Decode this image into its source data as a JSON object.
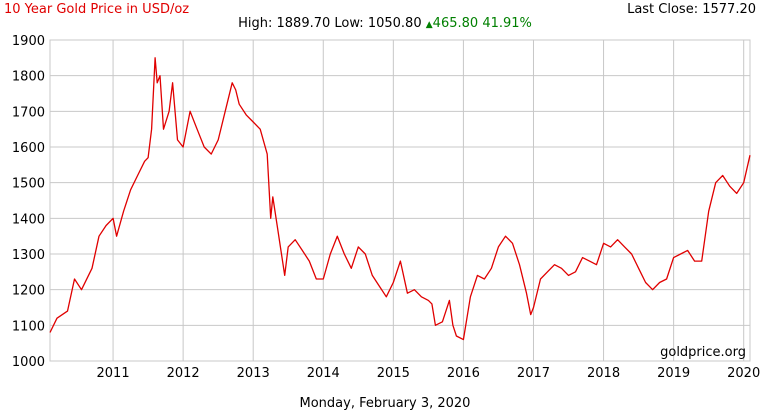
{
  "header": {
    "title": "10 Year Gold Price in USD/oz",
    "high_label": "High:",
    "high_value": "1889.70",
    "low_label": "Low:",
    "low_value": "1050.80",
    "change_value": "465.80",
    "change_percent": "41.91%",
    "last_close_label": "Last Close:",
    "last_close_value": "1577.20"
  },
  "footer": {
    "date": "Monday, February 3, 2020"
  },
  "watermark": "goldprice.org",
  "colors": {
    "line": "#e00000",
    "grid": "#c8c8c8",
    "title": "#e00000",
    "change": "#008000"
  },
  "chart_data": {
    "type": "line",
    "title": "10 Year Gold Price in USD/oz",
    "xlabel": "",
    "ylabel": "",
    "xlim": [
      2010.1,
      2020.09
    ],
    "ylim": [
      1000,
      1900
    ],
    "yticks": [
      1000,
      1100,
      1200,
      1300,
      1400,
      1500,
      1600,
      1700,
      1800,
      1900
    ],
    "xticks": [
      2011,
      2012,
      2013,
      2014,
      2015,
      2016,
      2017,
      2018,
      2019,
      2020
    ],
    "grid": true,
    "legend": "none",
    "series": [
      {
        "x": [
          2010.1,
          2010.2,
          2010.35,
          2010.45,
          2010.55,
          2010.7,
          2010.8,
          2010.9,
          2011.0,
          2011.05,
          2011.15,
          2011.25,
          2011.35,
          2011.45,
          2011.5,
          2011.55,
          2011.6,
          2011.63,
          2011.67,
          2011.72,
          2011.8,
          2011.85,
          2011.92,
          2012.0,
          2012.1,
          2012.2,
          2012.3,
          2012.4,
          2012.5,
          2012.6,
          2012.7,
          2012.75,
          2012.8,
          2012.9,
          2013.0,
          2013.1,
          2013.2,
          2013.25,
          2013.28,
          2013.35,
          2013.45,
          2013.5,
          2013.6,
          2013.7,
          2013.8,
          2013.9,
          2014.0,
          2014.1,
          2014.2,
          2014.3,
          2014.4,
          2014.5,
          2014.6,
          2014.7,
          2014.8,
          2014.9,
          2015.0,
          2015.1,
          2015.2,
          2015.3,
          2015.4,
          2015.5,
          2015.55,
          2015.6,
          2015.7,
          2015.8,
          2015.85,
          2015.9,
          2016.0,
          2016.1,
          2016.2,
          2016.3,
          2016.4,
          2016.5,
          2016.6,
          2016.7,
          2016.8,
          2016.9,
          2016.96,
          2017.0,
          2017.1,
          2017.2,
          2017.3,
          2017.4,
          2017.5,
          2017.6,
          2017.7,
          2017.8,
          2017.9,
          2018.0,
          2018.1,
          2018.2,
          2018.3,
          2018.4,
          2018.5,
          2018.6,
          2018.65,
          2018.7,
          2018.8,
          2018.9,
          2019.0,
          2019.1,
          2019.2,
          2019.3,
          2019.4,
          2019.45,
          2019.5,
          2019.6,
          2019.65,
          2019.7,
          2019.8,
          2019.9,
          2020.0,
          2020.09
        ],
        "y": [
          1080,
          1120,
          1140,
          1230,
          1200,
          1260,
          1350,
          1380,
          1400,
          1350,
          1420,
          1480,
          1520,
          1560,
          1570,
          1650,
          1850,
          1780,
          1800,
          1650,
          1700,
          1780,
          1620,
          1600,
          1700,
          1650,
          1600,
          1580,
          1620,
          1700,
          1780,
          1760,
          1720,
          1690,
          1670,
          1650,
          1580,
          1400,
          1460,
          1370,
          1240,
          1320,
          1340,
          1310,
          1280,
          1230,
          1230,
          1300,
          1350,
          1300,
          1260,
          1320,
          1300,
          1240,
          1210,
          1180,
          1220,
          1280,
          1190,
          1200,
          1180,
          1170,
          1160,
          1100,
          1110,
          1170,
          1100,
          1070,
          1060,
          1180,
          1240,
          1230,
          1260,
          1320,
          1350,
          1330,
          1270,
          1190,
          1130,
          1150,
          1230,
          1250,
          1270,
          1260,
          1240,
          1250,
          1290,
          1280,
          1270,
          1330,
          1320,
          1340,
          1320,
          1300,
          1260,
          1220,
          1210,
          1200,
          1220,
          1230,
          1290,
          1300,
          1310,
          1280,
          1280,
          1350,
          1420,
          1500,
          1510,
          1520,
          1490,
          1470,
          1500,
          1577
        ]
      }
    ]
  }
}
